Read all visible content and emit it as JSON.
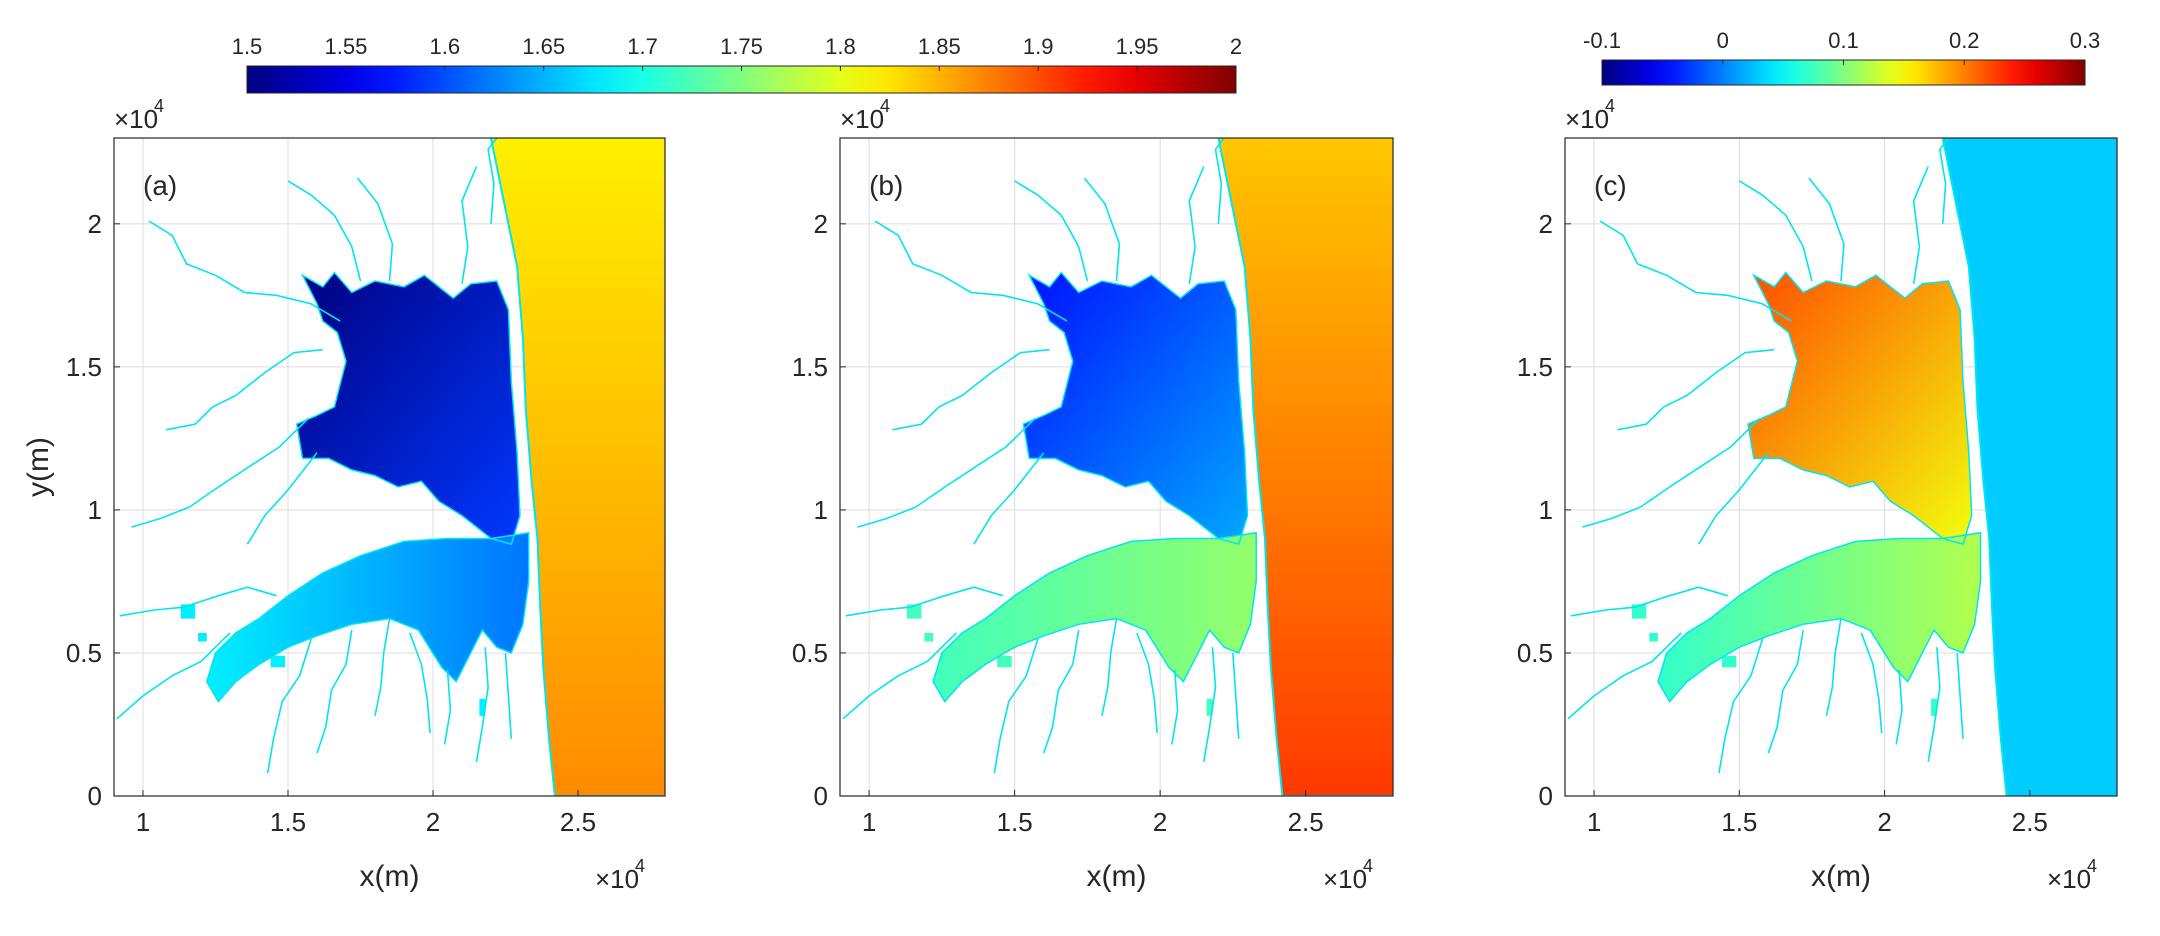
{
  "chart_data": [
    {
      "type": "heatmap",
      "panel_label": "(a)",
      "xlabel": "x(m)",
      "ylabel": "y(m)",
      "x_multiplier": "×10",
      "x_multiplier_exp": "4",
      "y_multiplier": "×10",
      "y_multiplier_exp": "4",
      "x_ticks": [
        {
          "value": 1,
          "label": "1"
        },
        {
          "value": 1.5,
          "label": "1.5"
        },
        {
          "value": 2,
          "label": "2"
        },
        {
          "value": 2.5,
          "label": "2.5"
        }
      ],
      "y_ticks": [
        {
          "value": 0,
          "label": "0"
        },
        {
          "value": 0.5,
          "label": "0.5"
        },
        {
          "value": 1,
          "label": "1"
        },
        {
          "value": 1.5,
          "label": "1.5"
        },
        {
          "value": 2,
          "label": "2"
        }
      ],
      "xlim": [
        0.9,
        2.8
      ],
      "ylim": [
        0,
        2.3
      ],
      "grid": true,
      "colormap": "jet",
      "clim": [
        1.5,
        2.0
      ],
      "fields": {
        "ocean_north": 1.82,
        "ocean_south": 1.87,
        "bay_upper": 1.5,
        "river_inner": 1.62,
        "river_outer": 1.68
      }
    },
    {
      "type": "heatmap",
      "panel_label": "(b)",
      "xlabel": "x(m)",
      "ylabel": "",
      "x_multiplier": "×10",
      "x_multiplier_exp": "4",
      "y_multiplier": "×10",
      "y_multiplier_exp": "4",
      "x_ticks": [
        {
          "value": 1,
          "label": "1"
        },
        {
          "value": 1.5,
          "label": "1.5"
        },
        {
          "value": 2,
          "label": "2"
        },
        {
          "value": 2.5,
          "label": "2.5"
        }
      ],
      "y_ticks": [
        {
          "value": 0,
          "label": "0"
        },
        {
          "value": 0.5,
          "label": "0.5"
        },
        {
          "value": 1,
          "label": "1"
        },
        {
          "value": 1.5,
          "label": "1.5"
        },
        {
          "value": 2,
          "label": "2"
        }
      ],
      "xlim": [
        0.9,
        2.8
      ],
      "ylim": [
        0,
        2.3
      ],
      "grid": true,
      "colormap": "jet",
      "clim": [
        1.5,
        2.0
      ],
      "fields": {
        "ocean_north": 1.84,
        "ocean_south": 1.91,
        "bay_upper": 1.57,
        "river_inner": 1.76,
        "river_outer": 1.72
      }
    },
    {
      "type": "heatmap",
      "panel_label": "(c)",
      "xlabel": "x(m)",
      "ylabel": "",
      "x_multiplier": "×10",
      "x_multiplier_exp": "4",
      "y_multiplier": "×10",
      "y_multiplier_exp": "4",
      "x_ticks": [
        {
          "value": 1,
          "label": "1"
        },
        {
          "value": 1.5,
          "label": "1.5"
        },
        {
          "value": 2,
          "label": "2"
        },
        {
          "value": 2.5,
          "label": "2.5"
        }
      ],
      "y_ticks": [
        {
          "value": 0,
          "label": "0"
        },
        {
          "value": 0.5,
          "label": "0.5"
        },
        {
          "value": 1,
          "label": "1"
        },
        {
          "value": 1.5,
          "label": "1.5"
        },
        {
          "value": 2,
          "label": "2"
        }
      ],
      "xlim": [
        0.9,
        2.8
      ],
      "ylim": [
        0,
        2.3
      ],
      "grid": true,
      "colormap": "jet",
      "clim": [
        -0.1,
        0.3
      ],
      "fields": {
        "ocean_north": 0.03,
        "ocean_south": 0.03,
        "bay_upper": 0.22,
        "river_inner": 0.12,
        "river_outer": 0.07
      }
    }
  ],
  "colorbars": [
    {
      "min": 1.5,
      "max": 2.0,
      "ticks": [
        "1.5",
        "1.55",
        "1.6",
        "1.65",
        "1.7",
        "1.75",
        "1.8",
        "1.85",
        "1.9",
        "1.95",
        "2"
      ]
    },
    {
      "min": -0.1,
      "max": 0.3,
      "ticks": [
        "-0.1",
        "0",
        "0.1",
        "0.2",
        "0.3"
      ]
    }
  ],
  "colors": {
    "coastline": "#00e5ee",
    "axis": "#262626",
    "grid": "#dcdcdc"
  }
}
